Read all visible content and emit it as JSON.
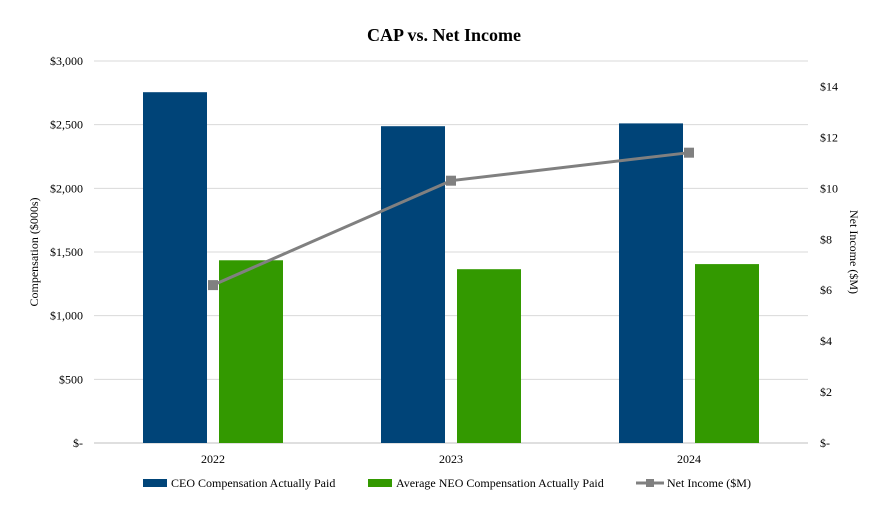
{
  "chart_data": {
    "type": "bar",
    "title": "CAP vs. Net Income",
    "categories": [
      "2022",
      "2023",
      "2024"
    ],
    "series": [
      {
        "name": "CEO Compensation Actually Paid",
        "kind": "bar",
        "axis": "left",
        "color": "#004478",
        "values": [
          2755,
          2488,
          2510
        ]
      },
      {
        "name": "Average NEO Compensation Actually Paid",
        "kind": "bar",
        "axis": "left",
        "color": "#339900",
        "values": [
          1435,
          1365,
          1405
        ]
      },
      {
        "name": "Net Income ($M)",
        "kind": "line",
        "axis": "right",
        "color": "#808080",
        "values": [
          6.2,
          10.3,
          11.4
        ]
      }
    ],
    "ylabel": "Compensation ($000s)",
    "y2label": "Net Income ($M)",
    "ylim": [
      0,
      3000
    ],
    "y2lim": [
      0,
      15
    ],
    "yticks": [
      {
        "value": 0,
        "label": "$-"
      },
      {
        "value": 500,
        "label": "$500"
      },
      {
        "value": 1000,
        "label": "$1,000"
      },
      {
        "value": 1500,
        "label": "$1,500"
      },
      {
        "value": 2000,
        "label": "$2,000"
      },
      {
        "value": 2500,
        "label": "$2,500"
      },
      {
        "value": 3000,
        "label": "$3,000"
      }
    ],
    "y2ticks": [
      {
        "value": 0,
        "label": "$-"
      },
      {
        "value": 2,
        "label": "$2"
      },
      {
        "value": 4,
        "label": "$4"
      },
      {
        "value": 6,
        "label": "$6"
      },
      {
        "value": 8,
        "label": "$8"
      },
      {
        "value": 10,
        "label": "$10"
      },
      {
        "value": 12,
        "label": "$12"
      },
      {
        "value": 14,
        "label": "$14"
      }
    ],
    "grid": true,
    "legend": "bottom"
  }
}
